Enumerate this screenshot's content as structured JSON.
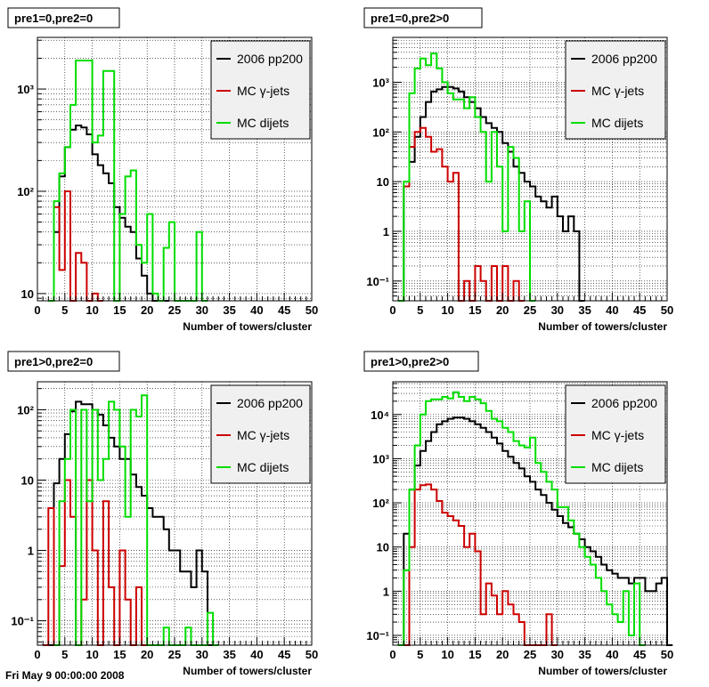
{
  "footer": "Fri May  9 00:00:00 2008",
  "chart_data": [
    {
      "type": "step",
      "title": "pre1=0,pre2=0",
      "xlabel": "Number of towers/cluster",
      "ylabel": "",
      "xlim": [
        0,
        50
      ],
      "ylim": [
        8.5,
        3200
      ],
      "log_y": true,
      "grid": true,
      "legend_position": "top-right",
      "x_ticks": [
        0,
        5,
        10,
        15,
        20,
        25,
        30,
        35,
        40,
        45,
        50
      ],
      "y_ticks": [
        {
          "v": 10,
          "t": "10"
        },
        {
          "v": 100,
          "t": "10²"
        },
        {
          "v": 1000,
          "t": "10³"
        }
      ],
      "bin_width": 1,
      "series": [
        {
          "name": "2006 pp200",
          "color": "#000000",
          "start": 2,
          "values": [
            0,
            40,
            140,
            270,
            400,
            440,
            420,
            360,
            230,
            180,
            150,
            120,
            70,
            55,
            45,
            40,
            22,
            15,
            10,
            8,
            6,
            0
          ]
        },
        {
          "name": "MC γ-jets",
          "color": "#cc0000",
          "start": 3,
          "values": [
            70,
            17,
            100,
            0,
            25,
            20,
            0,
            10,
            0
          ]
        },
        {
          "name": "MC dijets",
          "color": "#00dd00",
          "start": 2,
          "values": [
            0,
            80,
            150,
            270,
            700,
            1900,
            1900,
            1900,
            300,
            350,
            1500,
            1500,
            0,
            60,
            140,
            160,
            30,
            20,
            60,
            10,
            0,
            28,
            50,
            0,
            0,
            0,
            0,
            40,
            0
          ]
        }
      ]
    },
    {
      "type": "step",
      "title": "pre1=0,pre2>0",
      "xlabel": "Number of towers/cluster",
      "ylabel": "",
      "xlim": [
        0,
        50
      ],
      "ylim": [
        0.04,
        8000
      ],
      "log_y": true,
      "grid": true,
      "legend_position": "top-right",
      "x_ticks": [
        0,
        5,
        10,
        15,
        20,
        25,
        30,
        35,
        40,
        45,
        50
      ],
      "y_ticks": [
        {
          "v": 0.1,
          "t": "10⁻¹"
        },
        {
          "v": 1,
          "t": "1"
        },
        {
          "v": 10,
          "t": "10"
        },
        {
          "v": 100,
          "t": "10²"
        },
        {
          "v": 1000,
          "t": "10³"
        }
      ],
      "bin_width": 1,
      "series": [
        {
          "name": "2006 pp200",
          "color": "#000000",
          "start": 1,
          "values": [
            0.04,
            8,
            25,
            80,
            200,
            400,
            650,
            720,
            800,
            800,
            750,
            650,
            500,
            400,
            300,
            200,
            150,
            120,
            100,
            60,
            40,
            20,
            15,
            10,
            8,
            5,
            4,
            3,
            5,
            2,
            1,
            2,
            1,
            0.04
          ]
        },
        {
          "name": "MC γ-jets",
          "color": "#cc0000",
          "start": 2,
          "values": [
            8,
            50,
            100,
            120,
            80,
            40,
            45,
            20,
            10,
            15,
            0.04,
            0.1,
            0.04,
            0.2,
            0.1,
            0.04,
            0.2,
            0.04,
            0.2,
            0.04,
            0.1,
            0.04
          ]
        },
        {
          "name": "MC dijets",
          "color": "#00dd00",
          "start": 1,
          "values": [
            0.04,
            10,
            600,
            1900,
            3000,
            2200,
            3800,
            1900,
            1000,
            600,
            450,
            450,
            300,
            500,
            200,
            100,
            10,
            100,
            20,
            1,
            50,
            30,
            1,
            4,
            0.04
          ]
        }
      ]
    },
    {
      "type": "step",
      "title": "pre1>0,pre2=0",
      "xlabel": "Number of towers/cluster",
      "ylabel": "",
      "xlim": [
        0,
        50
      ],
      "ylim": [
        0.045,
        250
      ],
      "log_y": true,
      "grid": true,
      "legend_position": "top-right",
      "x_ticks": [
        0,
        5,
        10,
        15,
        20,
        25,
        30,
        35,
        40,
        45,
        50
      ],
      "y_ticks": [
        {
          "v": 0.1,
          "t": "10⁻¹"
        },
        {
          "v": 1,
          "t": "1"
        },
        {
          "v": 10,
          "t": "10"
        },
        {
          "v": 100,
          "t": "10²"
        }
      ],
      "bin_width": 1,
      "series": [
        {
          "name": "2006 pp200",
          "color": "#000000",
          "start": 2,
          "values": [
            0.045,
            9,
            20,
            45,
            95,
            130,
            120,
            120,
            100,
            85,
            60,
            40,
            30,
            20,
            20,
            12,
            8,
            6,
            4,
            3,
            3,
            2,
            1,
            1,
            0.5,
            0.5,
            0.3,
            1,
            0.5,
            0.045
          ]
        },
        {
          "name": "MC γ-jets",
          "color": "#cc0000",
          "start": 1,
          "values": [
            0.045,
            4,
            0.045,
            0.6,
            10,
            3,
            0.045,
            0.2,
            10,
            1,
            0.045,
            5,
            0.3,
            0.045,
            1,
            0.2,
            0.045,
            0.3,
            0.045
          ]
        },
        {
          "name": "MC dijets",
          "color": "#00dd00",
          "start": 3,
          "values": [
            0.045,
            5,
            20,
            100,
            0.045,
            100,
            5,
            100,
            10,
            20,
            130,
            100,
            30,
            3,
            100,
            80,
            160,
            0.045,
            0.045,
            0.045,
            0.08,
            0.045,
            0.045,
            0.045,
            0.08,
            0.045,
            0.045,
            0.045,
            0.13,
            0.045
          ]
        }
      ]
    },
    {
      "type": "step",
      "title": "pre1>0,pre2>0",
      "xlabel": "Number of towers/cluster",
      "ylabel": "",
      "xlim": [
        0,
        50
      ],
      "ylim": [
        0.06,
        55000
      ],
      "log_y": true,
      "grid": true,
      "legend_position": "top-right",
      "x_ticks": [
        0,
        5,
        10,
        15,
        20,
        25,
        30,
        35,
        40,
        45,
        50
      ],
      "y_ticks": [
        {
          "v": 0.1,
          "t": "10⁻¹"
        },
        {
          "v": 1,
          "t": "1"
        },
        {
          "v": 10,
          "t": "10"
        },
        {
          "v": 100,
          "t": "10²"
        },
        {
          "v": 1000,
          "t": "10³"
        },
        {
          "v": 10000,
          "t": "10⁴"
        }
      ],
      "bin_width": 1,
      "series": [
        {
          "name": "2006 pp200",
          "color": "#000000",
          "start": 1,
          "values": [
            0.06,
            20,
            200,
            700,
            1500,
            2500,
            4000,
            6000,
            7000,
            8000,
            8500,
            8500,
            8000,
            7000,
            6000,
            5000,
            4000,
            3000,
            2200,
            1500,
            1100,
            800,
            600,
            400,
            300,
            200,
            150,
            100,
            70,
            50,
            35,
            28,
            20,
            15,
            10,
            8,
            6,
            4,
            3,
            2.5,
            2,
            2,
            1.5,
            2,
            2,
            1,
            1,
            1.5,
            2,
            0.06
          ]
        },
        {
          "name": "MC γ-jets",
          "color": "#cc0000",
          "start": 2,
          "values": [
            0.06,
            10,
            200,
            250,
            260,
            200,
            110,
            60,
            50,
            40,
            30,
            10,
            20,
            8,
            0.3,
            1.5,
            0.8,
            0.3,
            1,
            0.5,
            0.3,
            0.2,
            0.06,
            0.06,
            0.06,
            0.06,
            0.3,
            0.06
          ]
        },
        {
          "name": "MC dijets",
          "color": "#00dd00",
          "start": 1,
          "values": [
            0.06,
            3,
            200,
            2000,
            10000,
            20000,
            22000,
            22000,
            25000,
            23000,
            32000,
            25000,
            20000,
            25000,
            22000,
            18000,
            12000,
            8000,
            7000,
            5000,
            4000,
            2500,
            2000,
            1800,
            3000,
            800,
            500,
            300,
            200,
            80,
            80,
            40,
            20,
            10,
            6,
            4,
            2,
            1,
            0.5,
            0.3,
            0.2,
            1,
            0.1,
            1.5,
            0.06
          ]
        }
      ]
    }
  ]
}
